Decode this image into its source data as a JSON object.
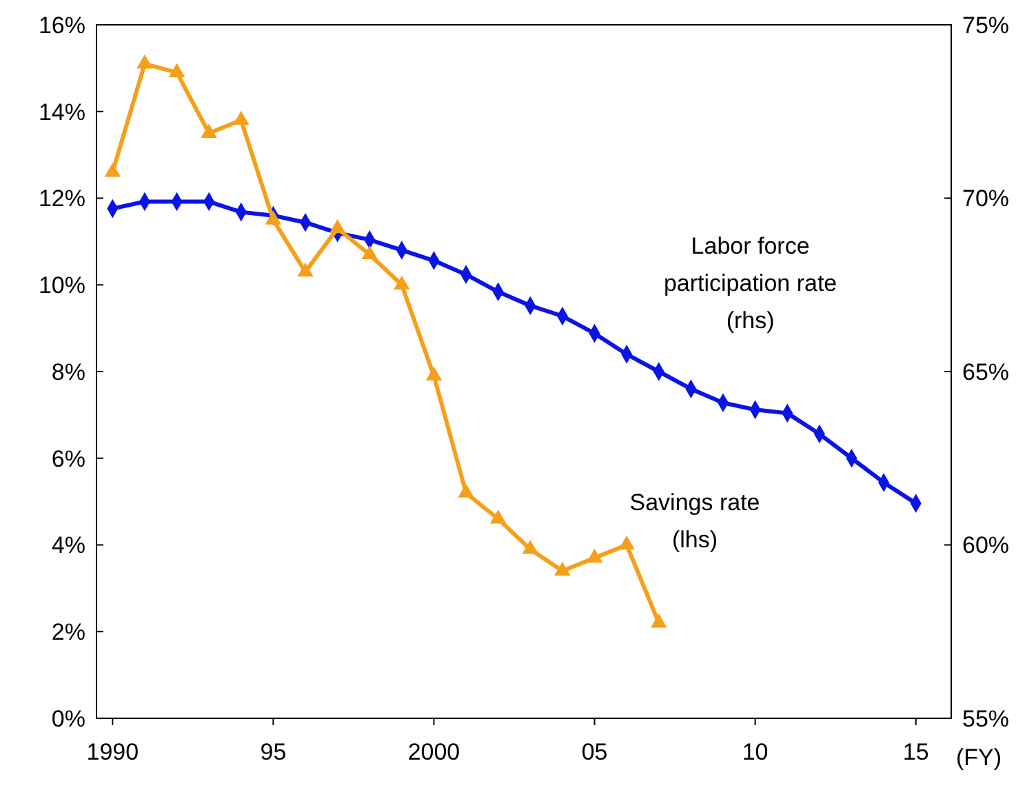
{
  "chart_data": {
    "type": "line",
    "xlabel": "(FY)",
    "xlim": [
      1989.5,
      2016.1
    ],
    "xticks": [
      {
        "value": 1990,
        "label": "1990"
      },
      {
        "value": 1995,
        "label": "95"
      },
      {
        "value": 2000,
        "label": "2000"
      },
      {
        "value": 2005,
        "label": "05"
      },
      {
        "value": 2010,
        "label": "10"
      },
      {
        "value": 2015,
        "label": "15"
      }
    ],
    "ylim": [
      0,
      16
    ],
    "yticks": [
      {
        "value": 0,
        "label": "0%"
      },
      {
        "value": 2,
        "label": "2%"
      },
      {
        "value": 4,
        "label": "4%"
      },
      {
        "value": 6,
        "label": "6%"
      },
      {
        "value": 8,
        "label": "8%"
      },
      {
        "value": 10,
        "label": "10%"
      },
      {
        "value": 12,
        "label": "12%"
      },
      {
        "value": 14,
        "label": "14%"
      },
      {
        "value": 16,
        "label": "16%"
      }
    ],
    "y2lim": [
      55,
      75
    ],
    "y2ticks": [
      {
        "value": 55,
        "label": "55%"
      },
      {
        "value": 60,
        "label": "60%"
      },
      {
        "value": 65,
        "label": "65%"
      },
      {
        "value": 70,
        "label": "70%"
      },
      {
        "value": 75,
        "label": "75%"
      }
    ],
    "grid": false,
    "series": [
      {
        "name": "Labor force\nparticipation rate\n(rhs)",
        "color": "#0a14e6",
        "axis": "y2",
        "marker": "diamond",
        "x": [
          1990,
          1991,
          1992,
          1993,
          1994,
          1995,
          1996,
          1997,
          1998,
          1999,
          2000,
          2001,
          2002,
          2003,
          2004,
          2005,
          2006,
          2007,
          2008,
          2009,
          2010,
          2011,
          2012,
          2013,
          2014,
          2015
        ],
        "values": [
          69.7,
          69.9,
          69.9,
          69.9,
          69.6,
          69.5,
          69.3,
          69.0,
          68.8,
          68.5,
          68.2,
          67.8,
          67.3,
          66.9,
          66.6,
          66.1,
          65.5,
          65.0,
          64.5,
          64.1,
          63.9,
          63.8,
          63.2,
          62.5,
          61.8,
          61.2
        ]
      },
      {
        "name": "Savings rate\n(lhs)",
        "color": "#f5a01a",
        "axis": "y",
        "marker": "triangle",
        "x": [
          1990,
          1991,
          1992,
          1993,
          1994,
          1995,
          1996,
          1997,
          1998,
          1999,
          2000,
          2001,
          2002,
          2003,
          2004,
          2005,
          2006,
          2007
        ],
        "values": [
          12.6,
          15.1,
          14.9,
          13.5,
          13.8,
          11.5,
          10.3,
          11.3,
          10.7,
          10.0,
          7.9,
          5.2,
          4.6,
          3.9,
          3.4,
          3.7,
          4.0,
          2.2
        ]
      }
    ]
  }
}
